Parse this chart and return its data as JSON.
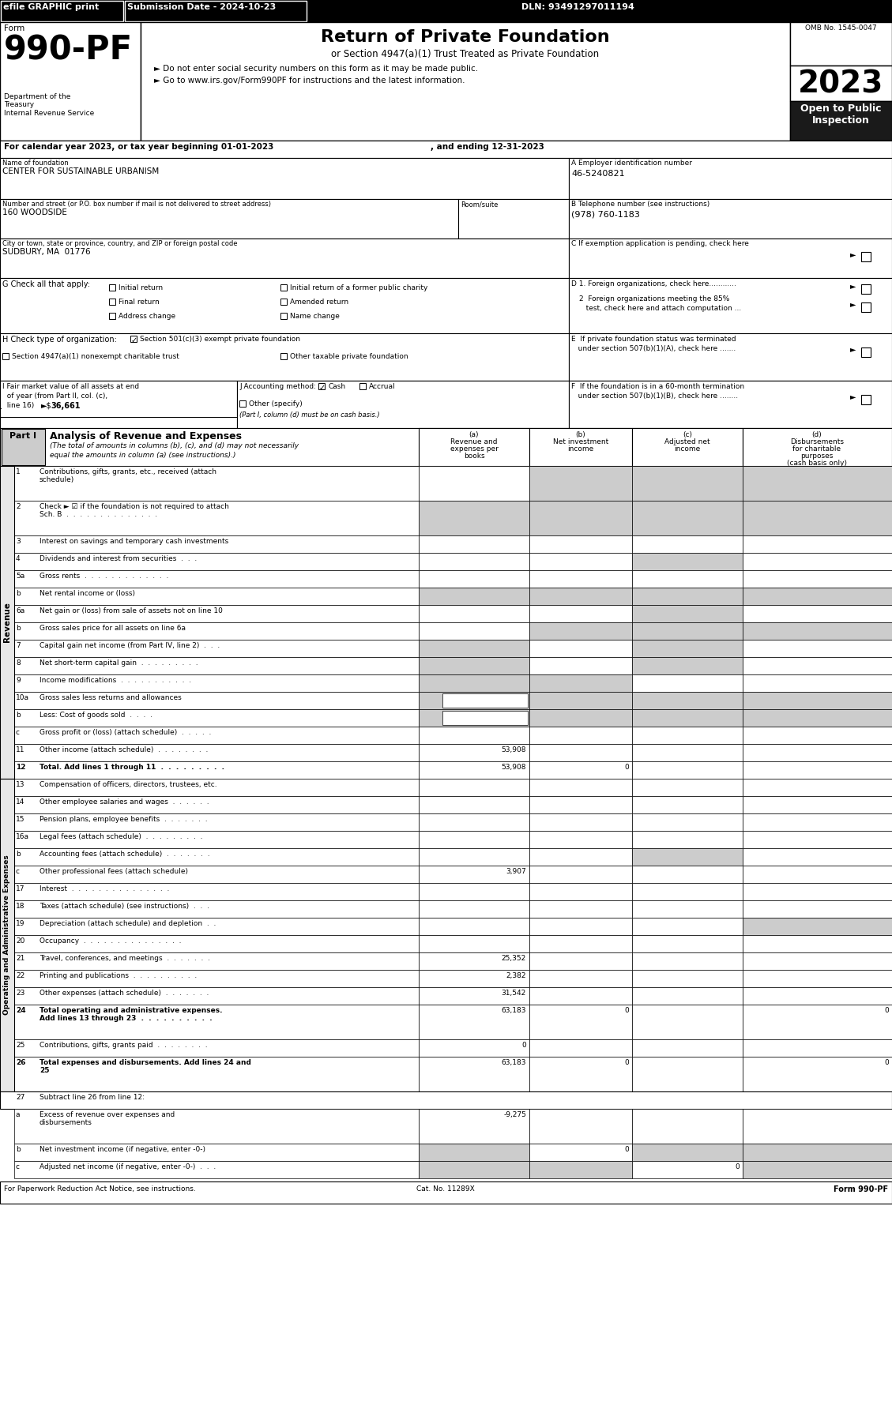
{
  "header_bar_bg": "#000000",
  "header_bar_fg": "#ffffff",
  "efile_text": "efile GRAPHIC print",
  "submission_text": "Submission Date - 2024-10-23",
  "dln_text": "DLN: 93491297011194",
  "form_number": "990-PF",
  "dept_text": "Department of the\nTreasury\nInternal Revenue Service",
  "title_main": "Return of Private Foundation",
  "title_sub": "or Section 4947(a)(1) Trust Treated as Private Foundation",
  "bullet1": "► Do not enter social security numbers on this form as it may be made public.",
  "bullet2": "► Go to www.irs.gov/Form990PF for instructions and the latest information.",
  "year_box": "2023",
  "open_public": "Open to Public\nInspection",
  "omb": "OMB No. 1545-0047",
  "calendar_line1": "For calendar year 2023, or tax year beginning 01-01-2023",
  "calendar_line2": ", and ending 12-31-2023",
  "name_label": "Name of foundation",
  "name_value": "CENTER FOR SUSTAINABLE URBANISM",
  "ein_label": "A Employer identification number",
  "ein_value": "46-5240821",
  "address_label": "Number and street (or P.O. box number if mail is not delivered to street address)",
  "address_value": "160 WOODSIDE",
  "room_label": "Room/suite",
  "phone_label": "B Telephone number (see instructions)",
  "phone_value": "(978) 760-1183",
  "city_label": "City or town, state or province, country, and ZIP or foreign postal code",
  "city_value": "SUDBURY, MA  01776",
  "exempt_label": "C If exemption application is pending, check here",
  "d1_label": "D 1. Foreign organizations, check here............",
  "d2_label": "2  Foreign organizations meeting the 85%\n   test, check here and attach computation ...",
  "e_label": "E  If private foundation status was terminated\n   under section 507(b)(1)(A), check here .......",
  "h_label": "H Check type of organization:",
  "h_501": "Section 501(c)(3) exempt private foundation",
  "h_4947": "Section 4947(a)(1) nonexempt charitable trust",
  "h_other": "Other taxable private foundation",
  "f_label": "F  If the foundation is in a 60-month termination\n   under section 507(b)(1)(B), check here ........",
  "i_label": "I Fair market value of all assets at end\n  of year (from Part II, col. (c),\n  line 16) ►$ 36,661",
  "j_label": "J Accounting method:",
  "j_cash": "Cash",
  "j_accrual": "Accrual",
  "j_other": "Other (specify)",
  "j_note": "(Part I, column (d) must be on cash basis.)",
  "part1_title": "Analysis of Revenue and Expenses",
  "part1_subtitle": "(The total of amounts in columns (b), (c), and (d) may not necessarily\nequal the amounts in column (a) (see instructions).)",
  "col_a_label": "(a)\nRevenue and\nexpenses per\nbooks",
  "col_b_label": "(b)\nNet investment\nincome",
  "col_c_label": "(c)\nAdjusted net\nincome",
  "col_d_label": "(d)\nDisbursements\nfor charitable\npurposes\n(cash basis only)",
  "revenue_label": "Revenue",
  "expenses_label": "Operating and Administrative Expenses",
  "gray": "#cccccc",
  "footer_left": "For Paperwork Reduction Act Notice, see instructions.",
  "footer_cat": "Cat. No. 11289X",
  "footer_right": "Form 990-PF"
}
